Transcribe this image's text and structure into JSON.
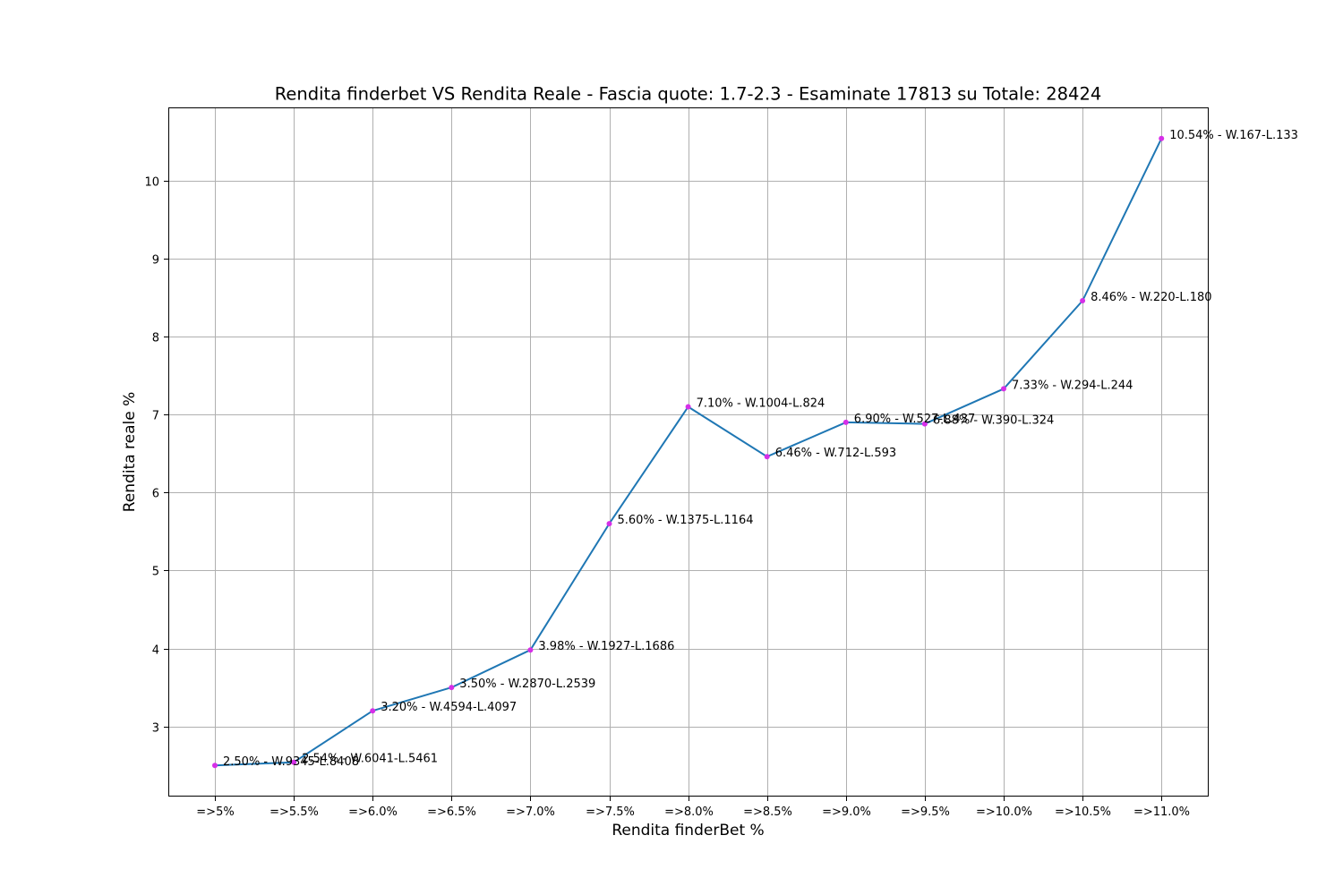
{
  "chart_data": {
    "type": "line",
    "title": "Rendita finderbet VS Rendita Reale - Fascia quote: 1.7-2.3 - Esaminate 17813 su Totale: 28424",
    "xlabel": "Rendita finderBet %",
    "ylabel": "Rendita reale %",
    "categories": [
      "=>5%",
      "=>5.5%",
      "=>6.0%",
      "=>6.5%",
      "=>7.0%",
      "=>7.5%",
      "=>8.0%",
      "=>8.5%",
      "=>9.0%",
      "=>9.5%",
      "=>10.0%",
      "=>10.5%",
      "=>11.0%"
    ],
    "series": [
      {
        "values": [
          2.5,
          2.54,
          3.2,
          3.5,
          3.98,
          5.6,
          7.1,
          6.46,
          6.9,
          6.88,
          7.33,
          8.46,
          10.54
        ]
      }
    ],
    "annotations": [
      "2.50% - W.9345-L.8408",
      "2.54% - W.6041-L.5461",
      "3.20% - W.4594-L.4097",
      "3.50% - W.2870-L.2539",
      "3.98% - W.1927-L.1686",
      "5.60% - W.1375-L.1164",
      "7.10% - W.1004-L.824",
      "6.46% - W.712-L.593",
      "6.90% - W.527-L.437",
      "6.88% - W.390-L.324",
      "7.33% - W.294-L.244",
      "8.46% - W.220-L.180",
      "10.54% - W.167-L.133"
    ],
    "yticks": [
      3,
      4,
      5,
      6,
      7,
      8,
      9,
      10
    ],
    "ylim": [
      2.1,
      10.94
    ],
    "grid": true,
    "line_color": "#1f77b4",
    "marker_color": "#d62fe8"
  }
}
